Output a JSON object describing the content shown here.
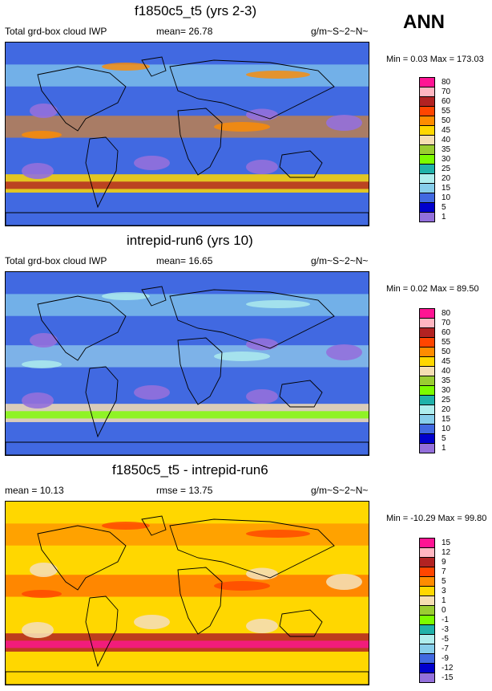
{
  "season": "ANN",
  "units": "g/m~S~2~N~",
  "panels": [
    {
      "title": "f1850c5_t5 (yrs 2-3)",
      "left_label": "Total grd-box cloud IWP",
      "stat_label": "mean=  26.78",
      "minmax": "Min =   0.03 Max = 173.03",
      "levels": [
        "80",
        "70",
        "60",
        "55",
        "50",
        "45",
        "40",
        "35",
        "30",
        "25",
        "20",
        "15",
        "10",
        "5",
        "1"
      ],
      "colors": [
        "#ff1493",
        "#ffb6c1",
        "#b22222",
        "#ff4500",
        "#ff8c00",
        "#ffd700",
        "#f5deb3",
        "#9acd32",
        "#7cfc00",
        "#20b2aa",
        "#afeeee",
        "#87ceeb",
        "#4169e1",
        "#0000cd",
        "#9370db"
      ]
    },
    {
      "title": "intrepid-run6 (yrs 10)",
      "left_label": "Total grd-box cloud IWP",
      "stat_label": "mean=  16.65",
      "minmax": "Min =   0.02 Max =  89.50",
      "levels": [
        "80",
        "70",
        "60",
        "55",
        "50",
        "45",
        "40",
        "35",
        "30",
        "25",
        "20",
        "15",
        "10",
        "5",
        "1"
      ],
      "colors": [
        "#ff1493",
        "#ffb6c1",
        "#b22222",
        "#ff4500",
        "#ff8c00",
        "#ffd700",
        "#f5deb3",
        "#9acd32",
        "#7cfc00",
        "#20b2aa",
        "#afeeee",
        "#87ceeb",
        "#4169e1",
        "#0000cd",
        "#9370db"
      ]
    },
    {
      "title": "f1850c5_t5 - intrepid-run6",
      "left_label": "mean =  10.13",
      "stat_label": "rmse =  13.75",
      "minmax": "Min = -10.29 Max =  99.80",
      "levels": [
        "15",
        "12",
        "9",
        "7",
        "5",
        "3",
        "1",
        "0",
        "-1",
        "-3",
        "-5",
        "-7",
        "-9",
        "-12",
        "-15"
      ],
      "colors": [
        "#ff1493",
        "#ffb6c1",
        "#b22222",
        "#ff4500",
        "#ff8c00",
        "#ffd700",
        "#f5deb3",
        "#9acd32",
        "#7cfc00",
        "#20b2aa",
        "#afeeee",
        "#87ceeb",
        "#4169e1",
        "#0000cd",
        "#9370db"
      ]
    }
  ],
  "map_palette": {
    "top": {
      "bg": "#4169e1",
      "low": "#9370db",
      "mid": "#87ceeb",
      "hi": "#ff8c00",
      "peak": "#b22222",
      "band": "#ffd700"
    },
    "mid": {
      "bg": "#4169e1",
      "low": "#9370db",
      "mid": "#87ceeb",
      "hi": "#afeeee",
      "peak": "#7cfc00",
      "band": "#f5deb3"
    },
    "diff": {
      "bg": "#ffd700",
      "low": "#f5deb3",
      "mid": "#ff8c00",
      "hi": "#ff4500",
      "peak": "#ff1493",
      "band": "#b22222"
    }
  }
}
